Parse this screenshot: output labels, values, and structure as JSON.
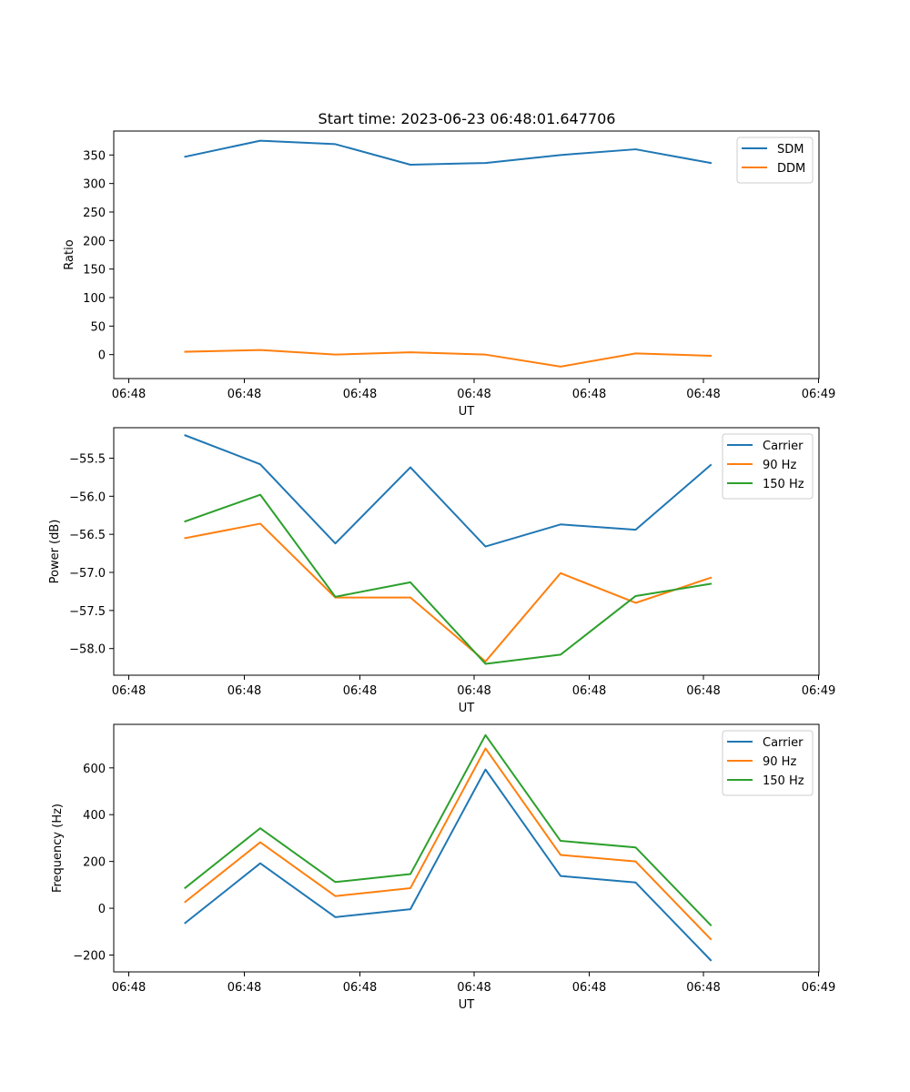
{
  "title": "Start time: 2023-06-23 06:48:01.647706",
  "colors": {
    "blue": "#1f77b4",
    "orange": "#ff7f0e",
    "green": "#2ca02c"
  },
  "chart_data": [
    {
      "type": "line",
      "xlabel": "UT",
      "ylabel": "Ratio",
      "x_tick_labels": [
        "06:48",
        "06:48",
        "06:48",
        "06:48",
        "06:48",
        "06:48",
        "06:48",
        "06:49"
      ],
      "y_ticks": [
        0,
        50,
        100,
        150,
        200,
        250,
        300,
        350
      ],
      "y_tick_labels": [
        "0",
        "50",
        "100",
        "150",
        "200",
        "250",
        "300",
        "350"
      ],
      "ylim": [
        -42,
        392
      ],
      "legend_position": "top-right",
      "series": [
        {
          "name": "SDM",
          "color": "#1f77b4",
          "values": [
            347,
            375,
            369,
            333,
            336,
            350,
            360,
            336
          ]
        },
        {
          "name": "DDM",
          "color": "#ff7f0e",
          "values": [
            5,
            8,
            0,
            4,
            0,
            -21,
            2,
            -2
          ]
        }
      ]
    },
    {
      "type": "line",
      "xlabel": "UT",
      "ylabel": "Power (dB)",
      "x_tick_labels": [
        "06:48",
        "06:48",
        "06:48",
        "06:48",
        "06:48",
        "06:48",
        "06:48",
        "06:49"
      ],
      "y_ticks": [
        -58.0,
        -57.5,
        -57.0,
        -56.5,
        -56.0,
        -55.5
      ],
      "y_tick_labels": [
        "−58.0",
        "−57.5",
        "−57.0",
        "−56.5",
        "−56.0",
        "−55.5"
      ],
      "ylim": [
        -58.35,
        -55.1
      ],
      "legend_position": "top-right",
      "series": [
        {
          "name": "Carrier",
          "color": "#1f77b4",
          "values": [
            -55.2,
            -55.58,
            -56.62,
            -55.62,
            -56.66,
            -56.37,
            -56.44,
            -55.59
          ]
        },
        {
          "name": "90 Hz",
          "color": "#ff7f0e",
          "values": [
            -56.55,
            -56.36,
            -57.33,
            -57.33,
            -58.17,
            -57.01,
            -57.4,
            -57.07
          ]
        },
        {
          "name": "150 Hz",
          "color": "#2ca02c",
          "values": [
            -56.33,
            -55.98,
            -57.32,
            -57.13,
            -58.2,
            -58.08,
            -57.31,
            -57.15
          ]
        }
      ]
    },
    {
      "type": "line",
      "xlabel": "UT",
      "ylabel": "Frequency (Hz)",
      "x_tick_labels": [
        "06:48",
        "06:48",
        "06:48",
        "06:48",
        "06:48",
        "06:48",
        "06:48",
        "06:49"
      ],
      "y_ticks": [
        -200,
        0,
        200,
        400,
        600
      ],
      "y_tick_labels": [
        "−200",
        "0",
        "200",
        "400",
        "600"
      ],
      "ylim": [
        -272,
        786
      ],
      "legend_position": "top-right",
      "series": [
        {
          "name": "Carrier",
          "color": "#1f77b4",
          "values": [
            -63,
            192,
            -38,
            -4,
            593,
            138,
            110,
            -222
          ]
        },
        {
          "name": "90 Hz",
          "color": "#ff7f0e",
          "values": [
            27,
            282,
            52,
            86,
            683,
            228,
            200,
            -132
          ]
        },
        {
          "name": "150 Hz",
          "color": "#2ca02c",
          "values": [
            87,
            342,
            112,
            146,
            740,
            288,
            260,
            -72
          ]
        }
      ]
    }
  ]
}
